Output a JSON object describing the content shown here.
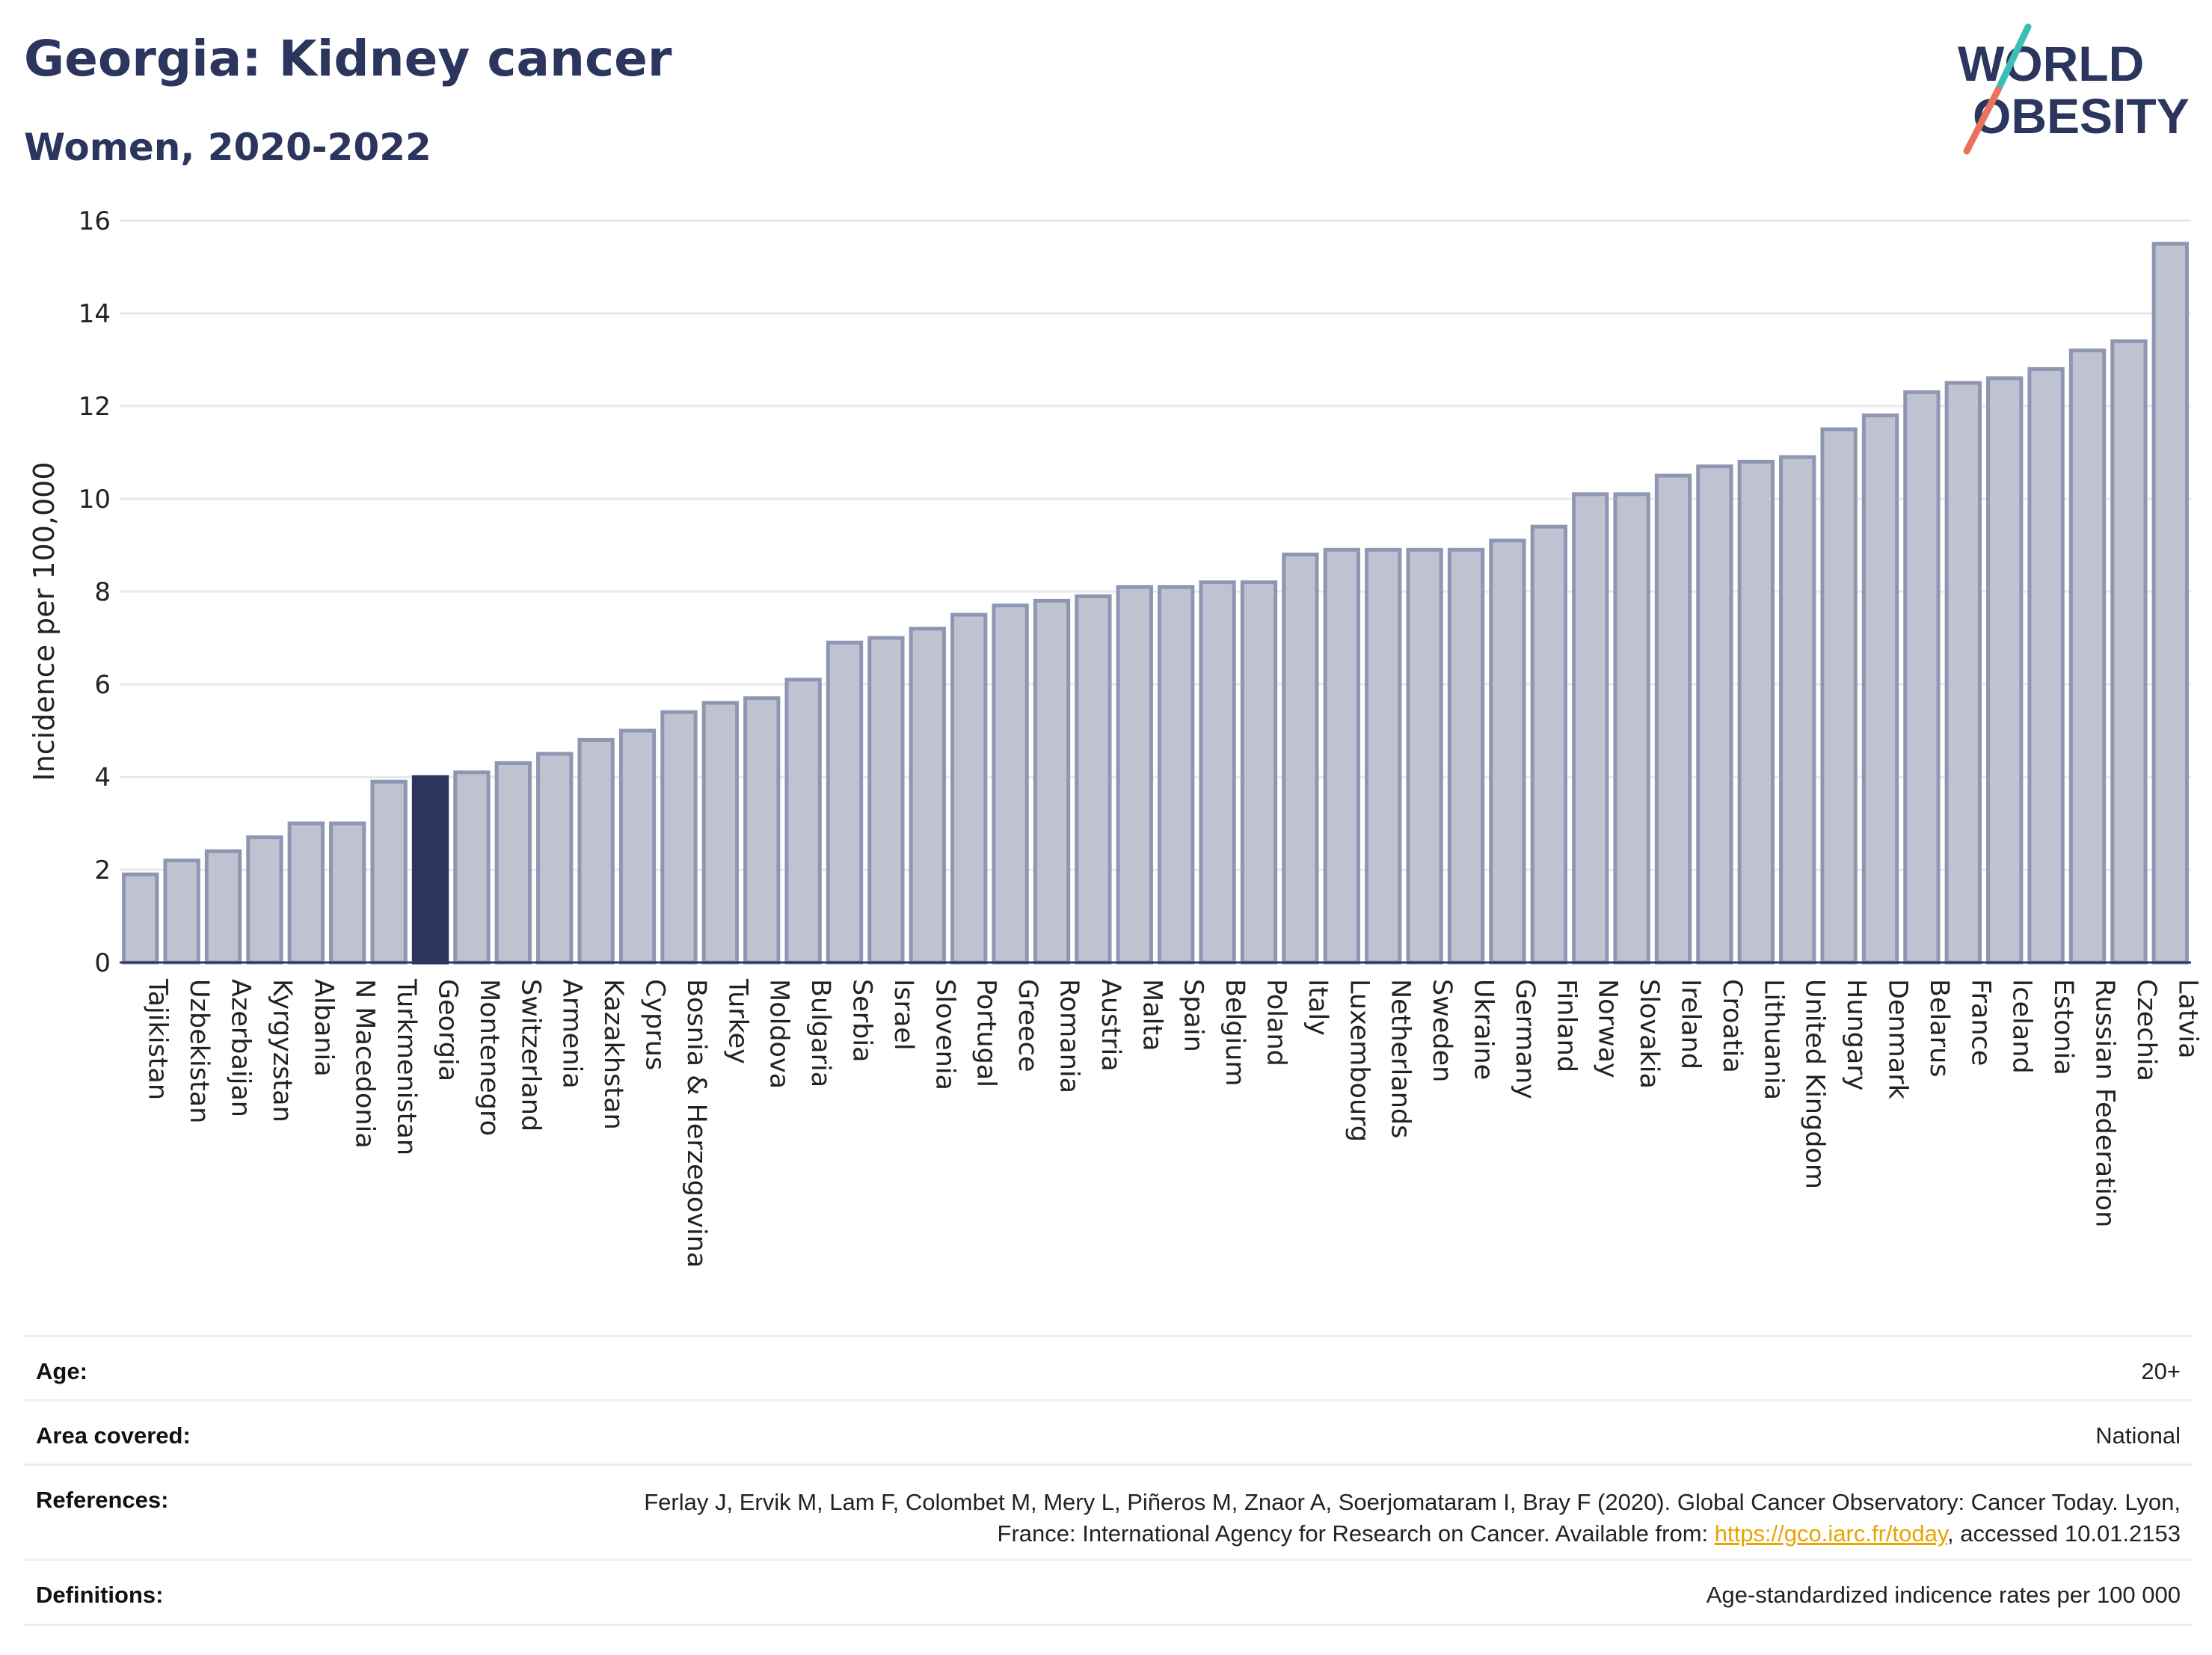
{
  "title": "Georgia: Kidney cancer",
  "subtitle": "Women, 2020-2022",
  "logo": {
    "line1": "WORLD",
    "line2": "OBESITY"
  },
  "colors": {
    "bar": "#bfc3d1",
    "bar_border": "#8f96b2",
    "highlight": "#2b355e",
    "grid": "#e8e8ec",
    "axis": "#2b355e",
    "link": "#e8a400",
    "logo_slash_top": "#3bbfb5",
    "logo_slash_bottom": "#e8725c"
  },
  "chart_data": {
    "type": "bar",
    "ylabel": "Incidence per 100,000",
    "ylim": [
      0,
      16
    ],
    "yticks": [
      0,
      2,
      4,
      6,
      8,
      10,
      12,
      14,
      16
    ],
    "grid": true,
    "highlight": "Georgia",
    "categories": [
      "Tajikistan",
      "Uzbekistan",
      "Azerbaijan",
      "Kyrgyzstan",
      "Albania",
      "N Macedonia",
      "Turkmenistan",
      "Georgia",
      "Montenegro",
      "Switzerland",
      "Armenia",
      "Kazakhstan",
      "Cyprus",
      "Bosnia & Herzegovina",
      "Turkey",
      "Moldova",
      "Bulgaria",
      "Serbia",
      "Israel",
      "Slovenia",
      "Portugal",
      "Greece",
      "Romania",
      "Austria",
      "Malta",
      "Spain",
      "Belgium",
      "Poland",
      "Italy",
      "Luxembourg",
      "Netherlands",
      "Sweden",
      "Ukraine",
      "Germany",
      "Finland",
      "Norway",
      "Slovakia",
      "Ireland",
      "Croatia",
      "Lithuania",
      "United Kingdom",
      "Hungary",
      "Denmark",
      "Belarus",
      "France",
      "Iceland",
      "Estonia",
      "Russian Federation",
      "Czechia",
      "Latvia"
    ],
    "values": [
      1.9,
      2.2,
      2.4,
      2.7,
      3.0,
      3.0,
      3.9,
      4.0,
      4.1,
      4.3,
      4.5,
      4.8,
      5.0,
      5.4,
      5.6,
      5.7,
      6.1,
      6.9,
      7.0,
      7.2,
      7.5,
      7.7,
      7.8,
      7.9,
      8.1,
      8.1,
      8.2,
      8.2,
      8.8,
      8.9,
      8.9,
      8.9,
      8.9,
      9.1,
      9.4,
      10.1,
      10.1,
      10.5,
      10.7,
      10.8,
      10.9,
      11.5,
      11.8,
      12.3,
      12.5,
      12.6,
      12.8,
      13.2,
      13.4,
      15.5
    ]
  },
  "meta": {
    "age_label": "Age:",
    "age_value": "20+",
    "area_label": "Area covered:",
    "area_value": "National",
    "ref_label": "References:",
    "ref_text": "Ferlay J, Ervik M, Lam F, Colombet M, Mery L, Piñeros M, Znaor A, Soerjomataram I, Bray F (2020). Global Cancer Observatory: Cancer Today. Lyon, France: International Agency for Research on Cancer. Available from: ",
    "ref_link": "https://gco.iarc.fr/today",
    "ref_tail": ", accessed 10.01.2153",
    "def_label": "Definitions:",
    "def_value": "Age-standardized indicence rates per 100 000"
  }
}
